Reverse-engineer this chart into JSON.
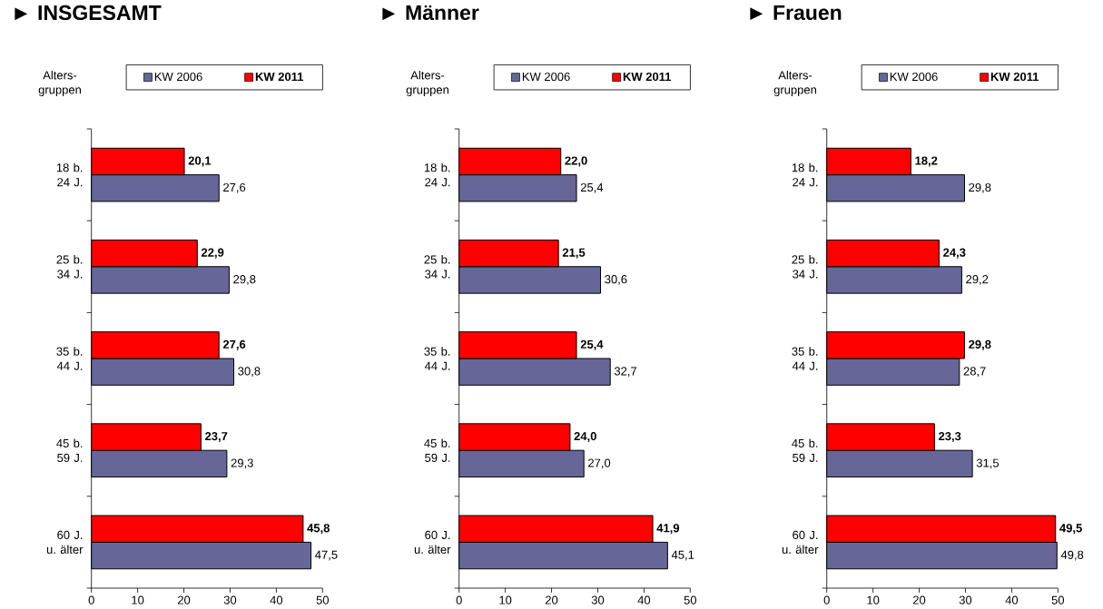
{
  "chart_data": [
    {
      "type": "bar",
      "orientation": "horizontal",
      "title": "► INSGESAMT",
      "ylabel": "Alters- gruppen",
      "categories": [
        "18 b. 24 J.",
        "25 b. 34 J.",
        "35 b. 44 J.",
        "45 b. 59 J.",
        "60 J. u. älter"
      ],
      "series": [
        {
          "name": "KW 2006",
          "color": "#666699",
          "values": [
            27.6,
            29.8,
            30.8,
            29.3,
            47.5
          ],
          "value_labels": [
            "27,6",
            "29,8",
            "30,8",
            "29,3",
            "47,5"
          ]
        },
        {
          "name": "KW 2011",
          "color": "#ff0000",
          "values": [
            20.1,
            22.9,
            27.6,
            23.7,
            45.8
          ],
          "value_labels": [
            "20,1",
            "22,9",
            "27,6",
            "23,7",
            "45,8"
          ]
        }
      ],
      "xlim": [
        0,
        50
      ],
      "xticks": [
        0,
        10,
        20,
        30,
        40,
        50
      ],
      "legend": "top"
    },
    {
      "type": "bar",
      "orientation": "horizontal",
      "title": "► Männer",
      "ylabel": "Alters- gruppen",
      "categories": [
        "18 b. 24 J.",
        "25 b. 34 J.",
        "35 b. 44 J.",
        "45 b. 59 J.",
        "60 J. u. älter"
      ],
      "series": [
        {
          "name": "KW 2006",
          "color": "#666699",
          "values": [
            25.4,
            30.6,
            32.7,
            27.0,
            45.1
          ],
          "value_labels": [
            "25,4",
            "30,6",
            "32,7",
            "27,0",
            "45,1"
          ]
        },
        {
          "name": "KW 2011",
          "color": "#ff0000",
          "values": [
            22.0,
            21.5,
            25.4,
            24.0,
            41.9
          ],
          "value_labels": [
            "22,0",
            "21,5",
            "25,4",
            "24,0",
            "41,9"
          ]
        }
      ],
      "xlim": [
        0,
        50
      ],
      "xticks": [
        0,
        10,
        20,
        30,
        40,
        50
      ],
      "legend": "top"
    },
    {
      "type": "bar",
      "orientation": "horizontal",
      "title": "► Frauen",
      "ylabel": "Alters- gruppen",
      "categories": [
        "18 b. 24 J.",
        "25 b. 34 J.",
        "35 b. 44 J.",
        "45 b. 59 J.",
        "60 J. u. älter"
      ],
      "series": [
        {
          "name": "KW 2006",
          "color": "#666699",
          "values": [
            29.8,
            29.2,
            28.7,
            31.5,
            49.8
          ],
          "value_labels": [
            "29,8",
            "29,2",
            "28,7",
            "31,5",
            "49,8"
          ]
        },
        {
          "name": "KW 2011",
          "color": "#ff0000",
          "values": [
            18.2,
            24.3,
            29.8,
            23.3,
            49.5
          ],
          "value_labels": [
            "18,2",
            "24,3",
            "29,8",
            "23,3",
            "49,5"
          ]
        }
      ],
      "xlim": [
        0,
        50
      ],
      "xticks": [
        0,
        10,
        20,
        30,
        40,
        50
      ],
      "legend": "top"
    }
  ]
}
